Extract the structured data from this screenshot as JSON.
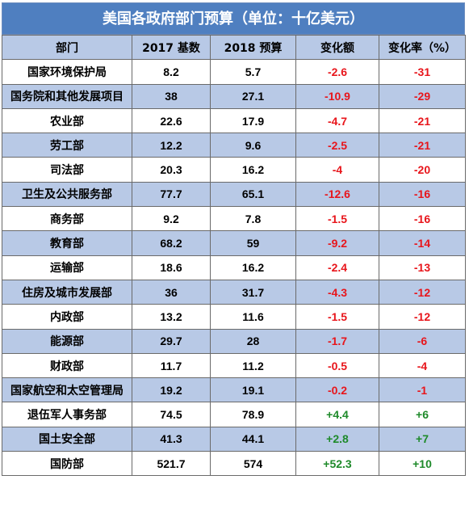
{
  "title": "美国各政府部门预算（单位：十亿美元）",
  "headers": [
    "部门",
    "2017 基数",
    "2018 预算",
    "变化额",
    "变化率（%）"
  ],
  "rows": [
    {
      "dept": "国家环境保护局",
      "base2017": "8.2",
      "budget2018": "5.7",
      "change": "-2.6",
      "rate": "-31",
      "sign": "neg"
    },
    {
      "dept": "国务院和其他发展项目",
      "base2017": "38",
      "budget2018": "27.1",
      "change": "-10.9",
      "rate": "-29",
      "sign": "neg"
    },
    {
      "dept": "农业部",
      "base2017": "22.6",
      "budget2018": "17.9",
      "change": "-4.7",
      "rate": "-21",
      "sign": "neg"
    },
    {
      "dept": "劳工部",
      "base2017": "12.2",
      "budget2018": "9.6",
      "change": "-2.5",
      "rate": "-21",
      "sign": "neg"
    },
    {
      "dept": "司法部",
      "base2017": "20.3",
      "budget2018": "16.2",
      "change": "-4",
      "rate": "-20",
      "sign": "neg"
    },
    {
      "dept": "卫生及公共服务部",
      "base2017": "77.7",
      "budget2018": "65.1",
      "change": "-12.6",
      "rate": "-16",
      "sign": "neg"
    },
    {
      "dept": "商务部",
      "base2017": "9.2",
      "budget2018": "7.8",
      "change": "-1.5",
      "rate": "-16",
      "sign": "neg"
    },
    {
      "dept": "教育部",
      "base2017": "68.2",
      "budget2018": "59",
      "change": "-9.2",
      "rate": "-14",
      "sign": "neg"
    },
    {
      "dept": "运输部",
      "base2017": "18.6",
      "budget2018": "16.2",
      "change": "-2.4",
      "rate": "-13",
      "sign": "neg"
    },
    {
      "dept": "住房及城市发展部",
      "base2017": "36",
      "budget2018": "31.7",
      "change": "-4.3",
      "rate": "-12",
      "sign": "neg"
    },
    {
      "dept": "内政部",
      "base2017": "13.2",
      "budget2018": "11.6",
      "change": "-1.5",
      "rate": "-12",
      "sign": "neg"
    },
    {
      "dept": "能源部",
      "base2017": "29.7",
      "budget2018": "28",
      "change": "-1.7",
      "rate": "-6",
      "sign": "neg"
    },
    {
      "dept": "财政部",
      "base2017": "11.7",
      "budget2018": "11.2",
      "change": "-0.5",
      "rate": "-4",
      "sign": "neg"
    },
    {
      "dept": "国家航空和太空管理局",
      "base2017": "19.2",
      "budget2018": "19.1",
      "change": "-0.2",
      "rate": "-1",
      "sign": "neg"
    },
    {
      "dept": "退伍军人事务部",
      "base2017": "74.5",
      "budget2018": "78.9",
      "change": "+4.4",
      "rate": "+6",
      "sign": "pos"
    },
    {
      "dept": "国土安全部",
      "base2017": "41.3",
      "budget2018": "44.1",
      "change": "+2.8",
      "rate": "+7",
      "sign": "pos"
    },
    {
      "dept": "国防部",
      "base2017": "521.7",
      "budget2018": "574",
      "change": "+52.3",
      "rate": "+10",
      "sign": "pos"
    }
  ],
  "colors": {
    "header_bg": "#4f7fc0",
    "band_bg": "#b8c9e6",
    "negative": "#e8151b",
    "positive": "#1e8a2a"
  }
}
